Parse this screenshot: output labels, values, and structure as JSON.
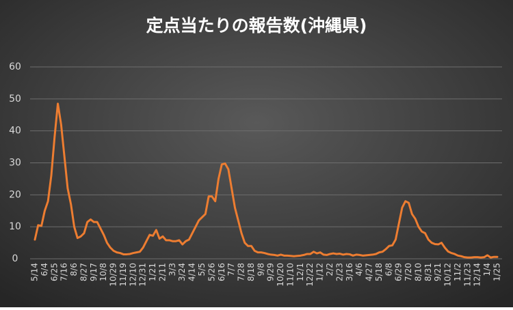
{
  "chart_data": {
    "type": "line",
    "title": "定点当たりの報告数(沖縄県)",
    "categories": [
      "5/14",
      null,
      null,
      "6/4",
      null,
      null,
      "6/25",
      null,
      null,
      "7/16",
      null,
      null,
      "8/6",
      null,
      null,
      "8/27",
      null,
      null,
      "9/17",
      null,
      null,
      "10/8",
      null,
      null,
      "10/29",
      null,
      null,
      "11/19",
      null,
      null,
      "12/10",
      null,
      null,
      "12/31",
      null,
      null,
      "1/21",
      null,
      null,
      "2/11",
      null,
      null,
      "3/3",
      null,
      null,
      "3/24",
      null,
      null,
      "4/14",
      null,
      null,
      "5/5",
      null,
      null,
      "5/26",
      null,
      null,
      "6/16",
      null,
      null,
      "7/7",
      null,
      null,
      "7/28",
      null,
      null,
      "8/18",
      null,
      null,
      "9/8",
      null,
      null,
      "9/29",
      null,
      null,
      "10/20",
      null,
      null,
      "11/10",
      null,
      null,
      "12/1",
      null,
      null,
      "12/22",
      null,
      null,
      "1/12",
      null,
      null,
      "2/2",
      null,
      null,
      "2/23",
      null,
      null,
      "3/16",
      null,
      null,
      "4/6",
      null,
      null,
      "4/27",
      null,
      null,
      "5/18",
      null,
      null,
      "6/8",
      null,
      null,
      "6/29",
      null,
      null,
      "7/20",
      null,
      null,
      "8/10",
      null,
      null,
      "8/31",
      null,
      null,
      "9/21",
      null,
      null,
      "10/12",
      null,
      null,
      "11/2",
      null,
      null,
      "11/23",
      null,
      null,
      "12/14",
      null,
      null,
      "1/4",
      null,
      null,
      "1/25"
    ],
    "series": [
      {
        "color": "#ed7d31",
        "values": [
          6,
          10.5,
          10.3,
          15,
          18,
          26,
          38,
          48.5,
          42,
          32,
          22,
          17,
          10,
          6.5,
          7,
          8,
          11.5,
          12.3,
          11.5,
          11.5,
          9.5,
          7.5,
          5,
          3.5,
          2.5,
          2,
          1.8,
          1.4,
          1.4,
          1.5,
          1.8,
          2,
          2.2,
          3.5,
          5.5,
          7.5,
          7.2,
          9,
          6.3,
          7,
          5.8,
          5.8,
          5.5,
          5.5,
          5.8,
          4.5,
          5.5,
          6,
          8,
          10,
          12,
          13,
          14,
          19.5,
          19.5,
          18,
          25,
          29.5,
          29.8,
          28,
          22,
          16,
          12,
          8,
          5,
          4,
          4,
          2.5,
          2,
          2,
          1.8,
          1.5,
          1.3,
          1.2,
          1,
          1.3,
          1,
          1,
          0.9,
          0.8,
          0.9,
          1,
          1.2,
          1.5,
          1.5,
          2.2,
          1.7,
          2,
          1.3,
          1.2,
          1.5,
          1.7,
          1.5,
          1.6,
          1.3,
          1.5,
          1.4,
          1,
          1.3,
          1.2,
          1,
          1.1,
          1.2,
          1.3,
          1.5,
          2,
          2.2,
          3,
          4,
          4.2,
          6,
          11,
          16,
          18,
          17.5,
          14,
          12.5,
          10,
          8.5,
          8,
          6,
          5,
          4.6,
          4.5,
          5,
          3.5,
          2.3,
          1.8,
          1.5,
          1,
          0.8,
          0.5,
          0.4,
          0.4,
          0.5,
          0.5,
          0.4,
          0.5,
          1.1,
          0.4,
          0.6,
          0.6
        ]
      }
    ],
    "ylim": [
      0,
      60
    ],
    "yticks": [
      0,
      10,
      20,
      30,
      40,
      50,
      60
    ],
    "grid": true
  }
}
